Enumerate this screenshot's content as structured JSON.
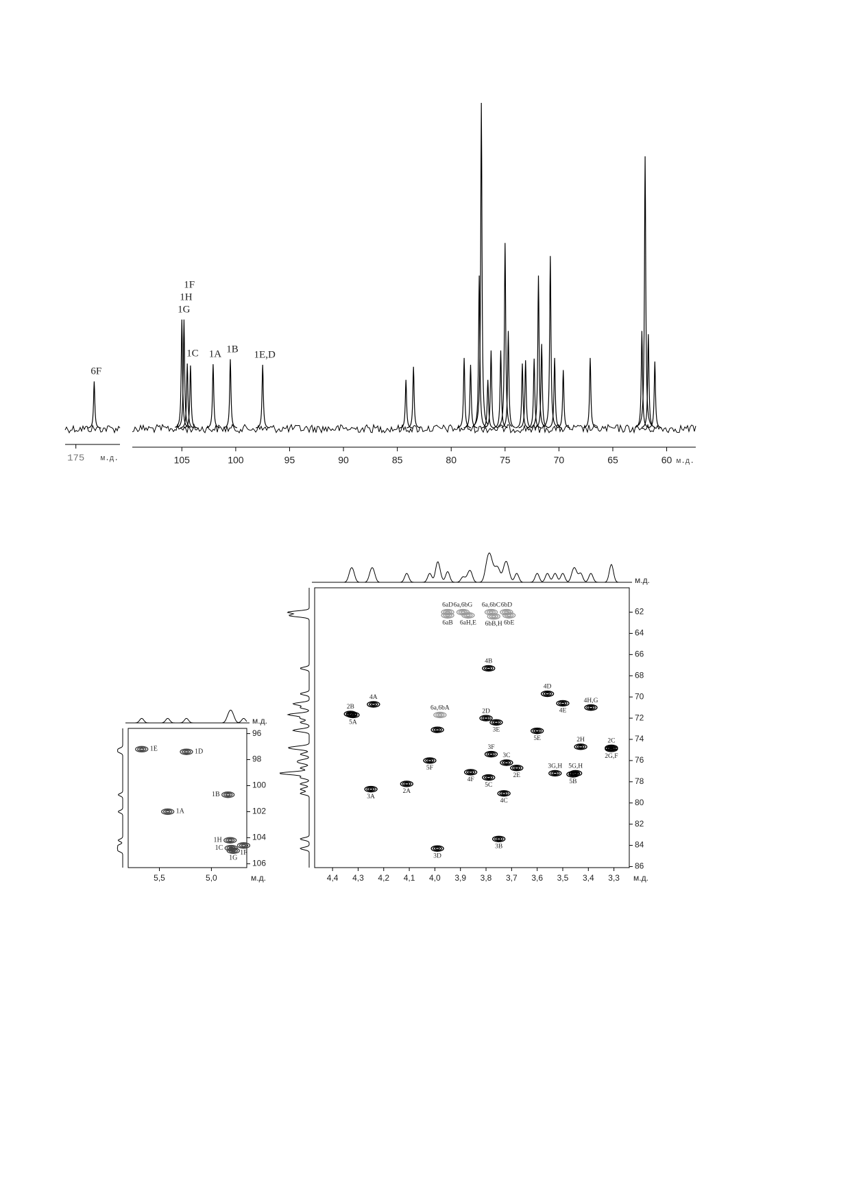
{
  "chart_data": [
    {
      "type": "spectrum",
      "x": [
        173.3
      ],
      "values": [
        14.5
      ],
      "color": "#000000",
      "annotations": [
        {
          "text": "6F",
          "x": 173.3
        }
      ],
      "xlim": [
        176,
        170.9
      ],
      "xticks": [
        175
      ],
      "x_label": "м.д."
    },
    {
      "type": "spectrum",
      "color": "#000000",
      "x": [
        105.0,
        104.8,
        104.5,
        104.2,
        102.1,
        100.5,
        97.5,
        84.2,
        83.5,
        78.8,
        78.2,
        77.4,
        77.2,
        76.6,
        76.3,
        75.4,
        75.0,
        74.7,
        73.4,
        73.1,
        72.3,
        71.9,
        71.6,
        70.8,
        70.4,
        69.6,
        67.1,
        62.3,
        62.0,
        61.7,
        61.1
      ],
      "values": [
        33.5,
        33.5,
        20,
        19.4,
        19.8,
        21.3,
        19.6,
        15,
        19,
        21.7,
        19.6,
        47,
        100,
        15,
        24,
        24,
        57,
        30,
        20,
        21,
        21.5,
        47,
        26,
        53,
        21.7,
        18,
        21.7,
        30,
        83.6,
        29,
        20.6
      ],
      "annotations": [
        {
          "text": "1G",
          "x": 105.0
        },
        {
          "text": "1H",
          "x": 104.8
        },
        {
          "text": "1C",
          "x": 104.2
        },
        {
          "text": "1F",
          "x": 104.5
        },
        {
          "text": "1A",
          "x": 102.1
        },
        {
          "text": "1B",
          "x": 100.5
        },
        {
          "text": "1E,D",
          "x": 97.5
        }
      ],
      "xlim": [
        109.6,
        57.3
      ],
      "xticks": [
        105,
        100,
        95,
        90,
        85,
        80,
        75,
        70,
        65,
        60
      ],
      "x_label": "м.д."
    },
    {
      "type": "hsqc",
      "x": [
        5.67,
        5.24,
        4.84,
        5.42,
        4.82,
        4.81,
        4.79,
        4.69
      ],
      "values": [
        97.2,
        97.4,
        100.7,
        102.0,
        104.2,
        104.8,
        105.0,
        104.6
      ],
      "labels": [
        "1E",
        "1D",
        "1B",
        "1A",
        "1H",
        "1C",
        "1G",
        "1F"
      ],
      "label_side": [
        "right",
        "right",
        "left",
        "right",
        "left",
        "left",
        "below",
        "below"
      ],
      "colors": [
        "#444444",
        "#444444",
        "#444444",
        "#444444",
        "#444444",
        "#444444",
        "#444444",
        "#444444"
      ],
      "xlim": [
        5.8,
        4.66
      ],
      "xticks": [
        {
          "value": 5.5,
          "label": "5,5"
        },
        {
          "value": 5.0,
          "label": "5,0"
        }
      ],
      "ylim": [
        95.6,
        106.3
      ],
      "yticks": [
        96,
        98,
        100,
        102,
        104,
        106
      ],
      "x_label": "м.д.",
      "y_label": "м.д."
    },
    {
      "type": "hsqc",
      "x": [
        4.33,
        4.32,
        4.24,
        3.98,
        3.79,
        3.8,
        3.76,
        3.56,
        3.5,
        3.39,
        3.99,
        3.6,
        3.43,
        3.31,
        3.31,
        3.78,
        3.72,
        3.68,
        4.02,
        3.86,
        3.79,
        3.53,
        3.45,
        3.46,
        3.73,
        4.25,
        4.11,
        3.75,
        3.99,
        3.95,
        3.95,
        3.89,
        3.87,
        3.78,
        3.77,
        3.72,
        3.71
      ],
      "values": [
        71.6,
        71.7,
        70.7,
        71.7,
        67.3,
        72.0,
        72.4,
        69.7,
        70.6,
        71.0,
        73.1,
        73.2,
        74.7,
        74.8,
        74.9,
        75.4,
        76.2,
        76.7,
        76.0,
        77.1,
        77.6,
        77.2,
        77.2,
        77.3,
        79.1,
        78.7,
        78.2,
        83.4,
        84.3,
        62.0,
        62.3,
        62.0,
        62.3,
        62.0,
        62.4,
        62.0,
        62.3
      ],
      "labels": [
        "2B",
        "5A",
        "4A",
        "6a,6bA",
        "4B",
        "2D",
        "3E",
        "4D",
        "4E",
        "4H,G",
        null,
        "5E",
        "2H",
        "2C",
        "2G,F",
        "3F",
        "3C",
        "2E",
        "5F",
        "4F",
        "5C",
        "3G,H",
        "5G,H",
        "5B",
        "4C",
        "3A",
        "2A",
        "3B",
        "3D",
        "6aD",
        "6aB",
        "6a,6bG",
        "6aH,E",
        "6a,6bC",
        "6bB,H",
        "6bD",
        "6bE"
      ],
      "label_side": [
        "above",
        "below",
        "above",
        "above",
        "above",
        "above",
        "below",
        "above",
        "below",
        "above",
        null,
        "below",
        "above",
        "above",
        "below",
        "above",
        "above",
        "below",
        "below",
        "below",
        "below",
        "above",
        "above",
        "below",
        "below",
        "below",
        "below",
        "below",
        "below",
        "above",
        "below",
        "above",
        "below",
        "above",
        "below",
        "above",
        "below"
      ],
      "colors": [
        "#000000",
        "#000000",
        "#000000",
        "#9a9a9a",
        "#000000",
        "#000000",
        "#000000",
        "#000000",
        "#000000",
        "#000000",
        "#000000",
        "#000000",
        "#000000",
        "#000000",
        "#000000",
        "#000000",
        "#000000",
        "#000000",
        "#000000",
        "#000000",
        "#000000",
        "#000000",
        "#000000",
        "#000000",
        "#000000",
        "#000000",
        "#000000",
        "#000000",
        "#000000",
        "#9a9a9a",
        "#9a9a9a",
        "#9a9a9a",
        "#9a9a9a",
        "#9a9a9a",
        "#9a9a9a",
        "#9a9a9a",
        "#9a9a9a"
      ],
      "xlim": [
        4.47,
        3.24
      ],
      "xticks": [
        {
          "value": 4.4,
          "label": "4,4"
        },
        {
          "value": 4.3,
          "label": "4,3"
        },
        {
          "value": 4.2,
          "label": "4,2"
        },
        {
          "value": 4.1,
          "label": "4,1"
        },
        {
          "value": 4.0,
          "label": "4,0"
        },
        {
          "value": 3.9,
          "label": "3,9"
        },
        {
          "value": 3.8,
          "label": "3,8"
        },
        {
          "value": 3.7,
          "label": "3,7"
        },
        {
          "value": 3.6,
          "label": "3,6"
        },
        {
          "value": 3.5,
          "label": "3,5"
        },
        {
          "value": 3.4,
          "label": "3,4"
        },
        {
          "value": 3.3,
          "label": "3,3"
        }
      ],
      "ylim": [
        59.7,
        86.1
      ],
      "yticks": [
        62,
        64,
        66,
        68,
        70,
        72,
        74,
        76,
        78,
        80,
        82,
        84,
        86
      ],
      "x_label": "м.д.",
      "y_label": "м.д."
    }
  ]
}
